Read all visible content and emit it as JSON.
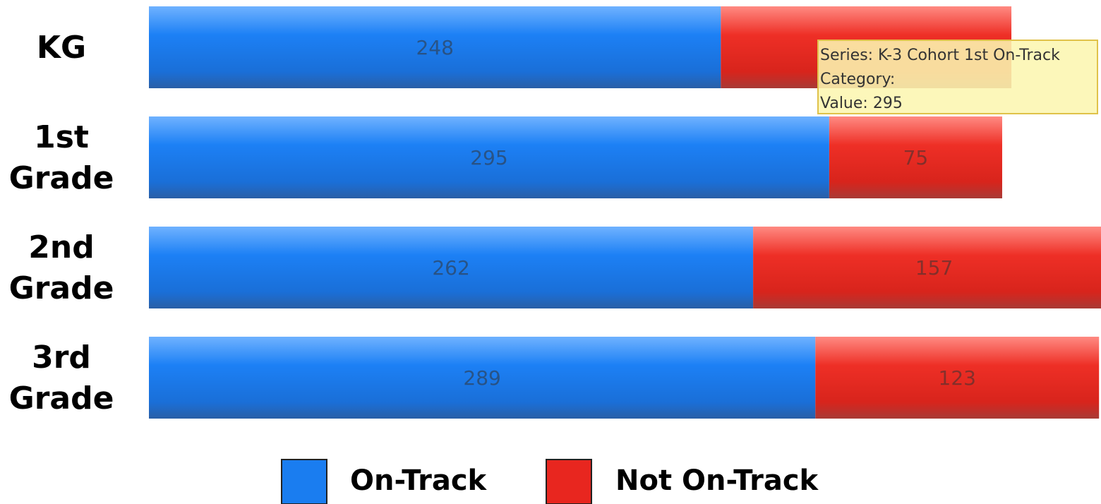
{
  "chart_data": {
    "type": "bar",
    "orientation": "horizontal",
    "stacked": true,
    "categories": [
      "KG",
      "1st Grade",
      "2nd Grade",
      "3rd Grade"
    ],
    "series": [
      {
        "name": "On-Track",
        "color": "#1a7df0",
        "values": [
          248,
          295,
          262,
          289
        ]
      },
      {
        "name": "Not On-Track",
        "color": "#e8261f",
        "values": [
          126,
          75,
          157,
          123
        ]
      }
    ],
    "value_labels": [
      [
        "248",
        "295",
        "262",
        "289"
      ],
      [
        "",
        "75",
        "157",
        "123"
      ]
    ],
    "xlim": [
      0,
      400
    ],
    "grid": false,
    "legend": "bottom-center",
    "title": "",
    "xlabel": "",
    "ylabel": ""
  },
  "tooltip": {
    "lines": [
      "Series: K-3 Cohort 1st On-Track",
      "Category:",
      "Value: 295"
    ]
  }
}
